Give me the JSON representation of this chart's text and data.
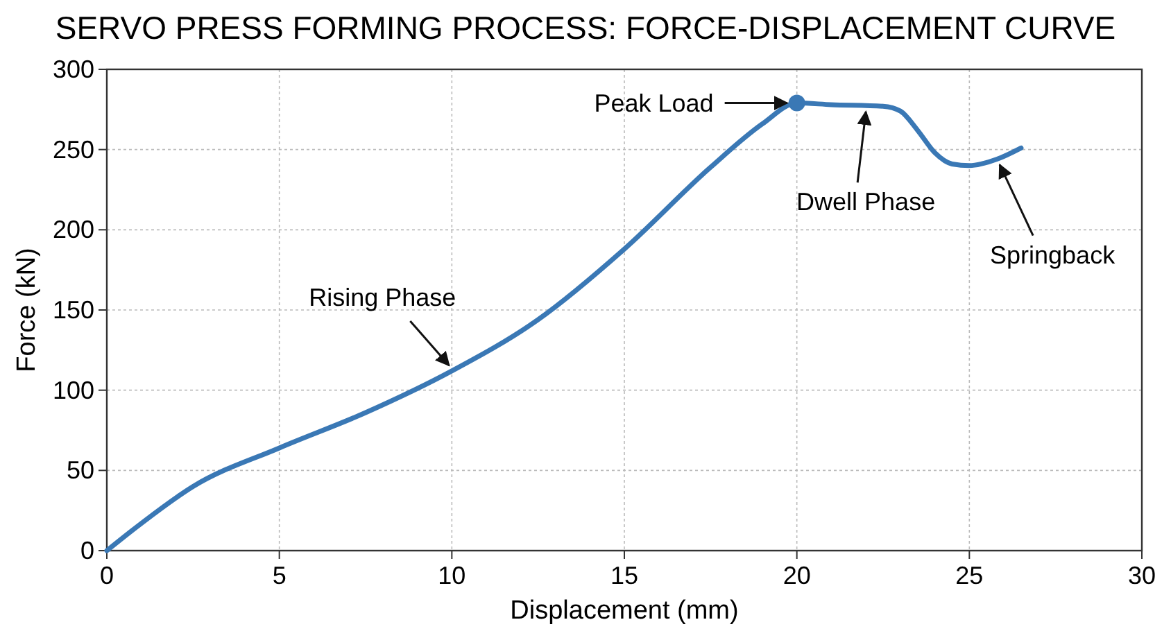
{
  "chart_data": {
    "type": "line",
    "title": "SERVO PRESS FORMING PROCESS: FORCE-DISPLACEMENT CURVE",
    "xlabel": "Displacement (mm)",
    "ylabel": "Force (kN)",
    "xlim": [
      0,
      30
    ],
    "xticks": [
      0,
      5,
      10,
      15,
      20,
      25,
      30
    ],
    "ylim": [
      0,
      300
    ],
    "yticks": [
      0,
      50,
      100,
      150,
      200,
      250,
      300
    ],
    "grid": true,
    "series": [
      {
        "color": "#3a78b5",
        "marker": "none",
        "x": [
          0,
          1,
          2.5,
          5,
          7.5,
          10,
          12.5,
          15,
          17.5,
          19,
          20,
          21,
          22.5,
          23,
          23.5,
          24,
          24.5,
          25,
          25.8,
          26.5
        ],
        "values": [
          0,
          17,
          40,
          64,
          86,
          112,
          144,
          188,
          239,
          266,
          279,
          278,
          277,
          274,
          262,
          248,
          241,
          240,
          244,
          251
        ]
      },
      {
        "type": "scatter",
        "color": "#3a78b5",
        "marker": "circle",
        "x": [
          20
        ],
        "values": [
          279
        ]
      }
    ],
    "annotations": [
      {
        "text": "Peak Load",
        "x": 20,
        "y": 279
      },
      {
        "text": "Rising Phase",
        "x": 10,
        "y": 112
      },
      {
        "text": "Dwell Phase",
        "x": 22,
        "y": 277
      },
      {
        "text": "Springback",
        "x": 25.8,
        "y": 244
      }
    ]
  }
}
